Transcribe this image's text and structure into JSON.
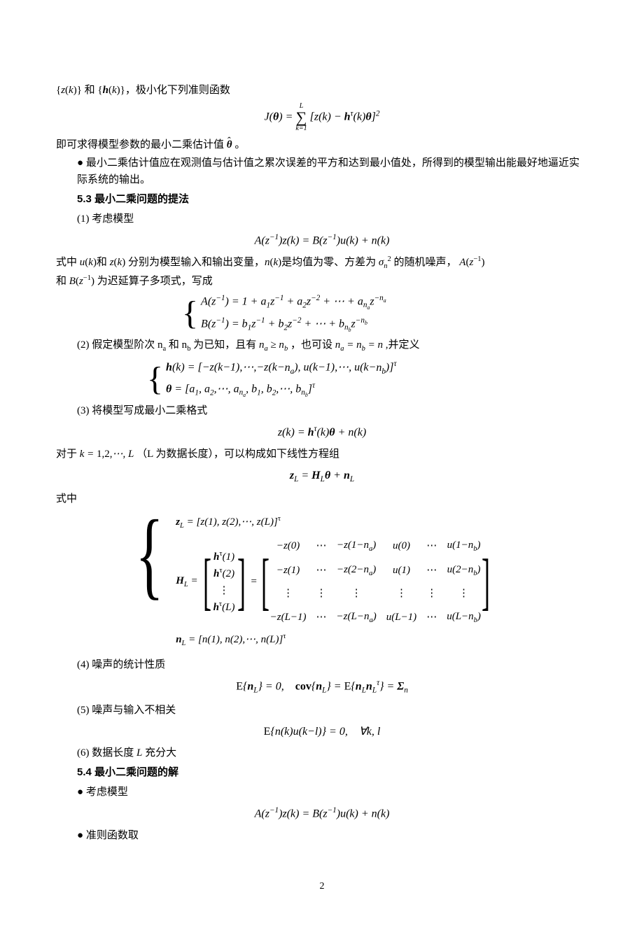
{
  "line1_prefix": "{z(k)} 和 {h(k)}，",
  "line1_suffix": "极小化下列准则函数",
  "formula1": "J(θ) = Σ[k=1..L] [z(k) − hᵀ(k)θ]²",
  "line2_prefix": "即可求得模型参数的最小二乘估计值",
  "line2_theta": "θ̂",
  "line2_suffix": "。",
  "bullet1": "最小二乘估计值应在观测值与估计值之累次误差的平方和达到最小值处，所得到的模型输出能最好地逼近实际系统的输出。",
  "sec53": "5.3 最小二乘问题的提法",
  "item1": "(1) 考虑模型",
  "formula2": "A(z⁻¹)z(k) = B(z⁻¹)u(k) + n(k)",
  "line3a": "式中 u(k)和 z(k) 分别为模型输入和输出变量，n(k)是均值为零、方差为",
  "line3b": "的随机噪声，",
  "line3c": "和",
  "line3d": "为迟延算子多项式，写成",
  "sigma": "σₙ²",
  "Az": "A(z⁻¹)",
  "Bz": "B(z⁻¹)",
  "brace1_l1": "A(z⁻¹) = 1 + a₁z⁻¹ + a₂z⁻² + ⋯ + a_{n_a} z^{−n_a}",
  "brace1_l2": "B(z⁻¹) = b₁z⁻¹ + b₂z⁻² + ⋯ + b_{n_b} z^{−n_b}",
  "item2_a": "(2) 假定模型阶次 n",
  "item2_b": "和 n",
  "item2_c": " 为已知，且有",
  "item2_d": "，也可设",
  "item2_e": ",并定义",
  "na_ge_nb": "nₐ ≥ n_b",
  "na_eq_nb": "nₐ = n_b = n",
  "brace2_l1": "h(k) = [−z(k−1),⋯,−z(k−nₐ), u(k−1),⋯, u(k−n_b)]ᵀ",
  "brace2_l2": "θ = [a₁, a₂,⋯, a_{n_a}, b₁, b₂,⋯, b_{n_b}]ᵀ",
  "item3": "(3) 将模型写成最小二乘格式",
  "formula3": "z(k) = hᵀ(k)θ + n(k)",
  "line4_a": "对于",
  "line4_b": "（L 为数据长度），可以构成如下线性方程组",
  "k12L": "k = 1,2,⋯, L",
  "formula4": "z_L = H_L θ + n_L",
  "where": "式中",
  "mat_zL": "z_L = [z(1), z(2),⋯, z(L)]ᵀ",
  "mat_HL_label": "H_L =",
  "mat_col": [
    "hᵀ(1)",
    "hᵀ(2)",
    "⋮",
    "hᵀ(L)"
  ],
  "mat_eq": " = ",
  "mat_grid": [
    [
      "−z(0)",
      "⋯",
      "−z(1−nₐ)",
      "u(0)",
      "⋯",
      "u(1−n_b)"
    ],
    [
      "−z(1)",
      "⋯",
      "−z(2−nₐ)",
      "u(1)",
      "⋯",
      "u(2−n_b)"
    ],
    [
      "⋮",
      "⋮",
      "⋮",
      "⋮",
      "⋮",
      "⋮"
    ],
    [
      "−z(L−1)",
      "⋯",
      "−z(L−nₐ)",
      "u(L−1)",
      "⋯",
      "u(L−n_b)"
    ]
  ],
  "mat_nL": "n_L = [n(1), n(2),⋯, n(L)]ᵀ",
  "item4": "(4) 噪声的统计性质",
  "formula5": "E{n_L} = 0,   cov{n_L} = E{n_L n_Lᵀ} = Σₙ",
  "item5": "(5) 噪声与输入不相关",
  "formula6": "E{n(k)u(k−l)} = 0,   ∀k, l",
  "item6": "(6) 数据长度 L 充分大",
  "sec54": "5.4 最小二乘问题的解",
  "bullet2": "考虑模型",
  "formula7": "A(z⁻¹)z(k) = B(z⁻¹)u(k) + n(k)",
  "bullet3": "准则函数取",
  "page": "2",
  "colors": {
    "text": "#000000",
    "bg": "#ffffff"
  }
}
